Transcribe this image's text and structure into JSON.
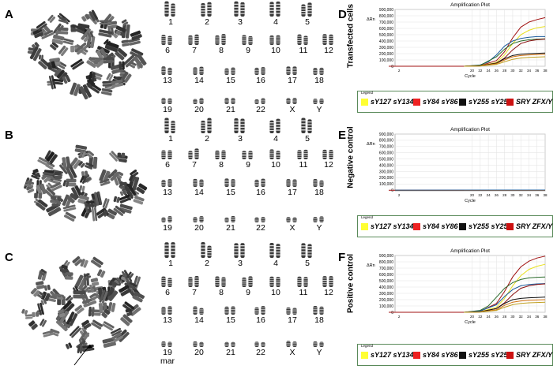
{
  "panels": {
    "A": {
      "label": "A",
      "chromosomes": [
        "1",
        "2",
        "3",
        "4",
        "5",
        "6",
        "7",
        "8",
        "9",
        "10",
        "11",
        "12",
        "13",
        "14",
        "15",
        "16",
        "17",
        "18",
        "19",
        "20",
        "21",
        "22",
        "X",
        "Y"
      ]
    },
    "B": {
      "label": "B",
      "chromosomes": [
        "1",
        "2",
        "3",
        "4",
        "5",
        "6",
        "7",
        "8",
        "9",
        "10",
        "11",
        "12",
        "13",
        "14",
        "15",
        "16",
        "17",
        "18",
        "19",
        "20",
        "21",
        "22",
        "X",
        "Y"
      ]
    },
    "C": {
      "label": "C",
      "chromosomes": [
        "1",
        "2",
        "3",
        "4",
        "5",
        "6",
        "7",
        "8",
        "9",
        "10",
        "11",
        "12",
        "13",
        "14",
        "15",
        "16",
        "17",
        "18",
        "19",
        "20",
        "21",
        "22",
        "X",
        "Y"
      ],
      "extra_label": "mar"
    },
    "D": {
      "label": "D",
      "side_label": "Transfected cells"
    },
    "E": {
      "label": "E",
      "side_label": "Negative control"
    },
    "F": {
      "label": "F",
      "side_label": "Positive control"
    }
  },
  "legend": {
    "title": "Legend",
    "items": [
      {
        "label": "sY127 sY134",
        "color": "#ffff33"
      },
      {
        "label": "sY84 sY86",
        "color": "#ee2222"
      },
      {
        "label": "sY255 sY254",
        "color": "#111111"
      },
      {
        "label": "SRY ZFX/Y",
        "color": "#cc1111"
      }
    ]
  },
  "chart_data": [
    {
      "panel": "D",
      "type": "line",
      "title": "Amplification Plot",
      "xlabel": "Cycle",
      "ylabel": "ΔRn",
      "xlim": [
        1,
        38
      ],
      "ylim": [
        0,
        900000
      ],
      "yticks": [
        "900,000",
        "800,000",
        "700,000",
        "600,000",
        "500,000",
        "400,000",
        "300,000",
        "200,000",
        "100,000",
        "0"
      ],
      "xticks": [
        "2",
        "20",
        "22",
        "24",
        "26",
        "28",
        "30",
        "32",
        "34",
        "36",
        "38"
      ],
      "series": [
        {
          "color": "#a01010",
          "x": [
            18,
            22,
            26,
            28,
            30,
            32,
            34,
            36,
            38
          ],
          "y": [
            0,
            10000,
            90000,
            230000,
            450000,
            620000,
            700000,
            740000,
            770000
          ]
        },
        {
          "color": "#e8e020",
          "x": [
            18,
            22,
            26,
            28,
            30,
            32,
            34,
            36,
            38
          ],
          "y": [
            0,
            10000,
            60000,
            180000,
            360000,
            500000,
            570000,
            610000,
            630000
          ]
        },
        {
          "color": "#1a5a9a",
          "x": [
            18,
            22,
            24,
            26,
            28,
            30,
            32,
            34,
            36,
            38
          ],
          "y": [
            0,
            20000,
            70000,
            180000,
            320000,
            400000,
            440000,
            460000,
            470000,
            470000
          ]
        },
        {
          "color": "#2a6a2a",
          "x": [
            18,
            22,
            26,
            28,
            30,
            32,
            34,
            36,
            38
          ],
          "y": [
            0,
            15000,
            150000,
            270000,
            360000,
            400000,
            420000,
            430000,
            435000
          ]
        },
        {
          "color": "#8a1010",
          "x": [
            18,
            22,
            26,
            28,
            30,
            32,
            34,
            36,
            38
          ],
          "y": [
            0,
            8000,
            50000,
            130000,
            260000,
            360000,
            400000,
            420000,
            430000
          ]
        },
        {
          "color": "#111111",
          "x": [
            18,
            22,
            26,
            28,
            30,
            32,
            34,
            36,
            38
          ],
          "y": [
            0,
            5000,
            50000,
            120000,
            170000,
            190000,
            200000,
            205000,
            210000
          ]
        },
        {
          "color": "#d07010",
          "x": [
            18,
            22,
            26,
            28,
            30,
            32,
            34,
            36,
            38
          ],
          "y": [
            0,
            5000,
            40000,
            100000,
            150000,
            170000,
            180000,
            185000,
            190000
          ]
        },
        {
          "color": "#c0a020",
          "x": [
            18,
            22,
            26,
            28,
            30,
            32,
            34,
            36,
            38
          ],
          "y": [
            0,
            4000,
            30000,
            70000,
            110000,
            130000,
            140000,
            145000,
            150000
          ]
        }
      ]
    },
    {
      "panel": "E",
      "type": "line",
      "title": "Amplification Plot",
      "xlabel": "Cycle",
      "ylabel": "ΔRn",
      "xlim": [
        1,
        38
      ],
      "ylim": [
        -10000,
        900000
      ],
      "yticks": [
        "900,000",
        "800,000",
        "700,000",
        "600,000",
        "500,000",
        "400,000",
        "300,000",
        "200,000",
        "100,000",
        "0"
      ],
      "xticks": [
        "2",
        "20",
        "22",
        "24",
        "26",
        "28",
        "30",
        "32",
        "34",
        "36",
        "38"
      ],
      "series": [
        {
          "color": "#a01010",
          "x": [
            1,
            38
          ],
          "y": [
            0,
            0
          ]
        },
        {
          "color": "#d07010",
          "x": [
            1,
            38
          ],
          "y": [
            -2000,
            -2000
          ]
        },
        {
          "color": "#1a5a9a",
          "x": [
            1,
            38
          ],
          "y": [
            2000,
            3000
          ]
        }
      ]
    },
    {
      "panel": "F",
      "type": "line",
      "title": "Amplification Plot",
      "xlabel": "Cycle",
      "ylabel": "ΔRn",
      "xlim": [
        1,
        38
      ],
      "ylim": [
        0,
        900000
      ],
      "yticks": [
        "900,000",
        "800,000",
        "700,000",
        "600,000",
        "500,000",
        "400,000",
        "300,000",
        "200,000",
        "100,000",
        "0"
      ],
      "xticks": [
        "2",
        "20",
        "22",
        "24",
        "26",
        "28",
        "30",
        "32",
        "34",
        "36",
        "38"
      ],
      "series": [
        {
          "color": "#a01010",
          "x": [
            18,
            22,
            26,
            28,
            30,
            32,
            34,
            36,
            38
          ],
          "y": [
            0,
            15000,
            140000,
            330000,
            560000,
            720000,
            810000,
            860000,
            890000
          ]
        },
        {
          "color": "#e8e020",
          "x": [
            18,
            22,
            26,
            28,
            30,
            32,
            34,
            36,
            38
          ],
          "y": [
            0,
            10000,
            80000,
            220000,
            420000,
            580000,
            680000,
            730000,
            760000
          ]
        },
        {
          "color": "#2a6a2a",
          "x": [
            18,
            22,
            24,
            26,
            28,
            30,
            32,
            34,
            36,
            38
          ],
          "y": [
            0,
            30000,
            100000,
            240000,
            380000,
            470000,
            520000,
            545000,
            555000,
            560000
          ]
        },
        {
          "color": "#1a5a9a",
          "x": [
            18,
            22,
            26,
            28,
            30,
            32,
            34,
            36,
            38
          ],
          "y": [
            0,
            20000,
            120000,
            250000,
            360000,
            420000,
            440000,
            450000,
            455000
          ]
        },
        {
          "color": "#8a1010",
          "x": [
            18,
            22,
            26,
            28,
            30,
            32,
            34,
            36,
            38
          ],
          "y": [
            0,
            8000,
            60000,
            150000,
            280000,
            380000,
            420000,
            440000,
            450000
          ]
        },
        {
          "color": "#111111",
          "x": [
            18,
            22,
            26,
            28,
            30,
            32,
            34,
            36,
            38
          ],
          "y": [
            0,
            6000,
            60000,
            140000,
            200000,
            220000,
            230000,
            235000,
            240000
          ]
        },
        {
          "color": "#d07010",
          "x": [
            18,
            22,
            26,
            28,
            30,
            32,
            34,
            36,
            38
          ],
          "y": [
            0,
            5000,
            40000,
            110000,
            160000,
            180000,
            190000,
            195000,
            200000
          ]
        },
        {
          "color": "#c0a020",
          "x": [
            18,
            22,
            26,
            28,
            30,
            32,
            34,
            36,
            38
          ],
          "y": [
            0,
            4000,
            30000,
            80000,
            120000,
            140000,
            150000,
            155000,
            160000
          ]
        }
      ]
    }
  ]
}
